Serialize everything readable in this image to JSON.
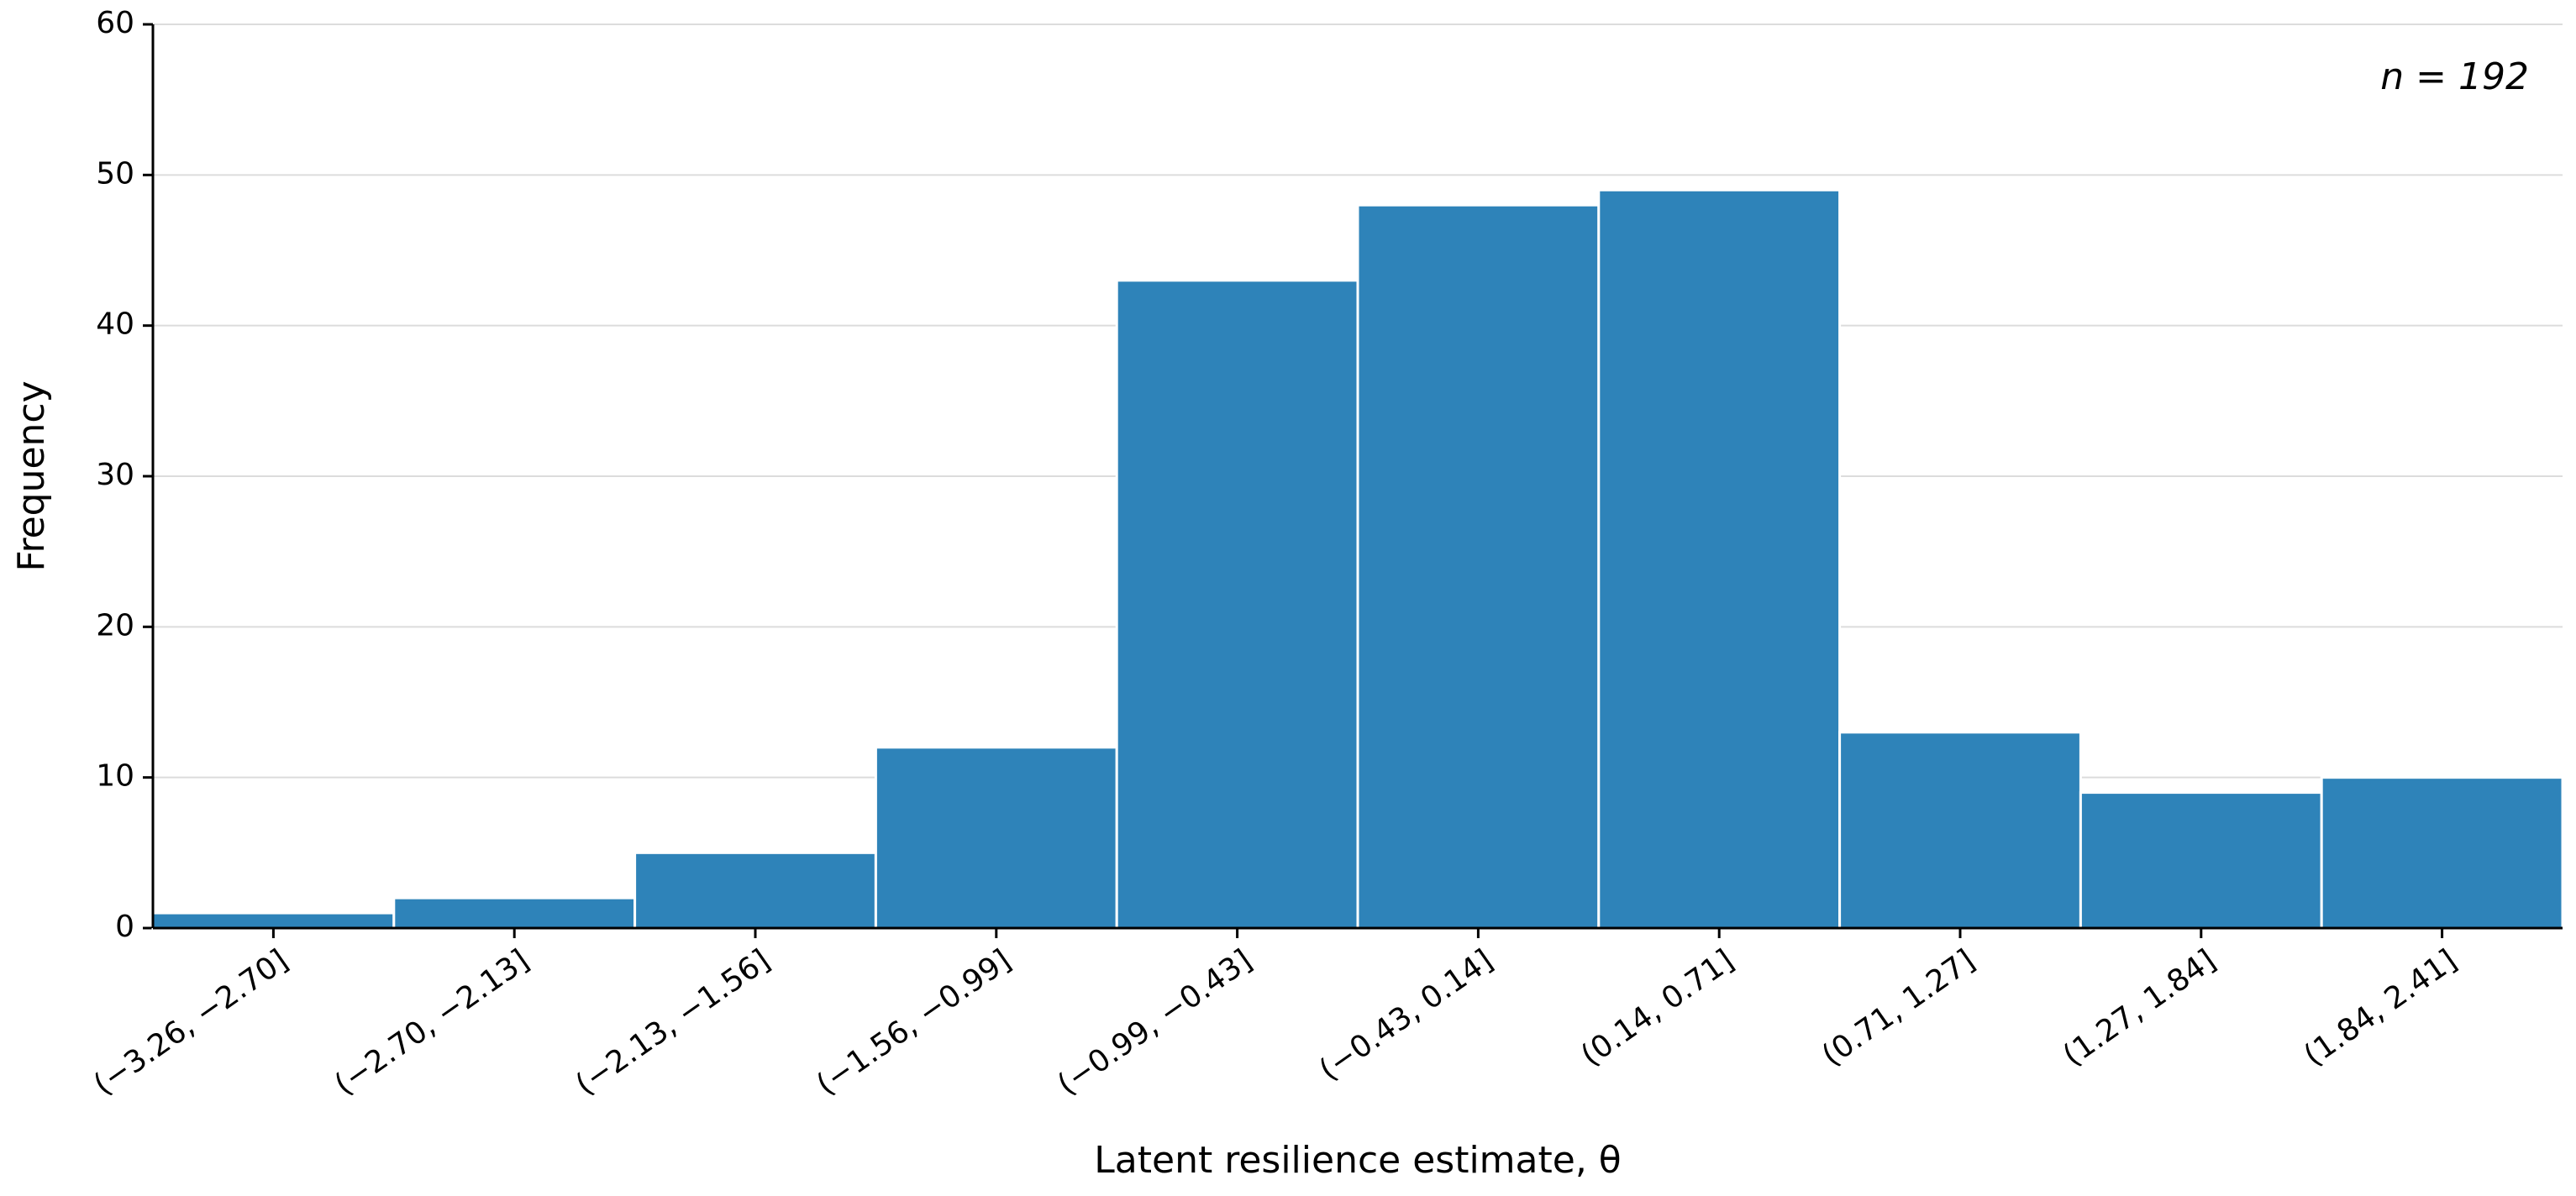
{
  "chart_data": {
    "type": "bar",
    "x_label": "Latent resilience estimate, θ",
    "y_label": "Frequency",
    "annotation": "n = 192",
    "categories": [
      "(−3.26, −2.70]",
      "(−2.70, −2.13]",
      "(−2.13, −1.56]",
      "(−1.56, −0.99]",
      "(−0.99, −0.43]",
      "(−0.43, 0.14]",
      "(0.14, 0.71]",
      "(0.71, 1.27]",
      "(1.27, 1.84]",
      "(1.84, 2.41]"
    ],
    "values": [
      1,
      2,
      5,
      12,
      43,
      48,
      49,
      13,
      9,
      10
    ],
    "color": "#2e83b9",
    "ylim": [
      0,
      60
    ],
    "yticks": [
      0,
      10,
      20,
      30,
      40,
      50,
      60
    ],
    "grid": true
  }
}
